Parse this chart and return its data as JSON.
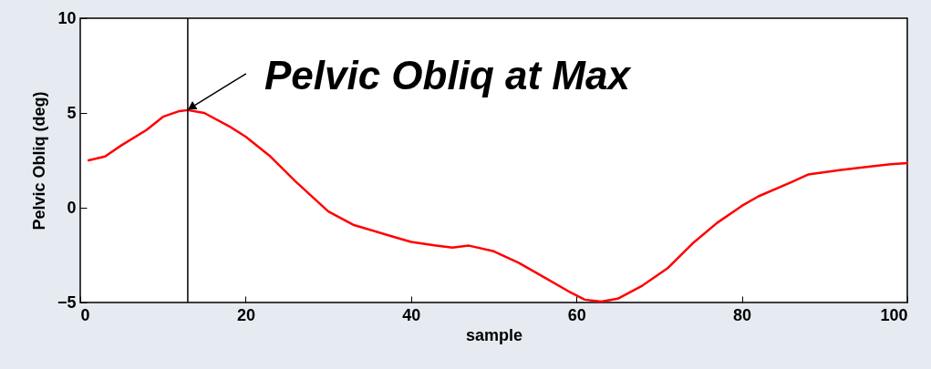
{
  "chart_data": {
    "type": "line",
    "xlabel": "sample",
    "ylabel": "Pelvic Obliq (deg)",
    "x": [
      1,
      3,
      5,
      8,
      10,
      12,
      13,
      15,
      18,
      20,
      23,
      26,
      30,
      33,
      38,
      40,
      43,
      45,
      47,
      50,
      53,
      56,
      59,
      61,
      63,
      65,
      68,
      71,
      74,
      77,
      80,
      82,
      86,
      88,
      92,
      96,
      98,
      100
    ],
    "series": [
      {
        "color": "#ff0000",
        "values": [
          2.5,
          2.7,
          3.3,
          4.1,
          4.8,
          5.1,
          5.15,
          5.0,
          4.3,
          3.75,
          2.7,
          1.4,
          -0.2,
          -0.9,
          -1.55,
          -1.8,
          -2.0,
          -2.1,
          -2.0,
          -2.3,
          -2.9,
          -3.65,
          -4.4,
          -4.85,
          -4.95,
          -4.8,
          -4.1,
          -3.2,
          -1.9,
          -0.8,
          0.1,
          0.6,
          1.35,
          1.75,
          2.0,
          2.2,
          2.3,
          2.35
        ]
      }
    ],
    "xlim": [
      0,
      100
    ],
    "xticks": [
      0,
      20,
      40,
      60,
      80,
      100
    ],
    "ylim": [
      -5,
      10
    ],
    "yticks": [
      -5,
      0,
      5,
      10
    ],
    "ref_lines": [
      {
        "axis": "x",
        "value": 13,
        "color": "#000000"
      }
    ],
    "annotations": [
      {
        "text": "Pelvic Obliq at Max",
        "x": 13,
        "y": 5.15
      }
    ],
    "grid": false,
    "marker": "none",
    "line_style": "solid"
  }
}
